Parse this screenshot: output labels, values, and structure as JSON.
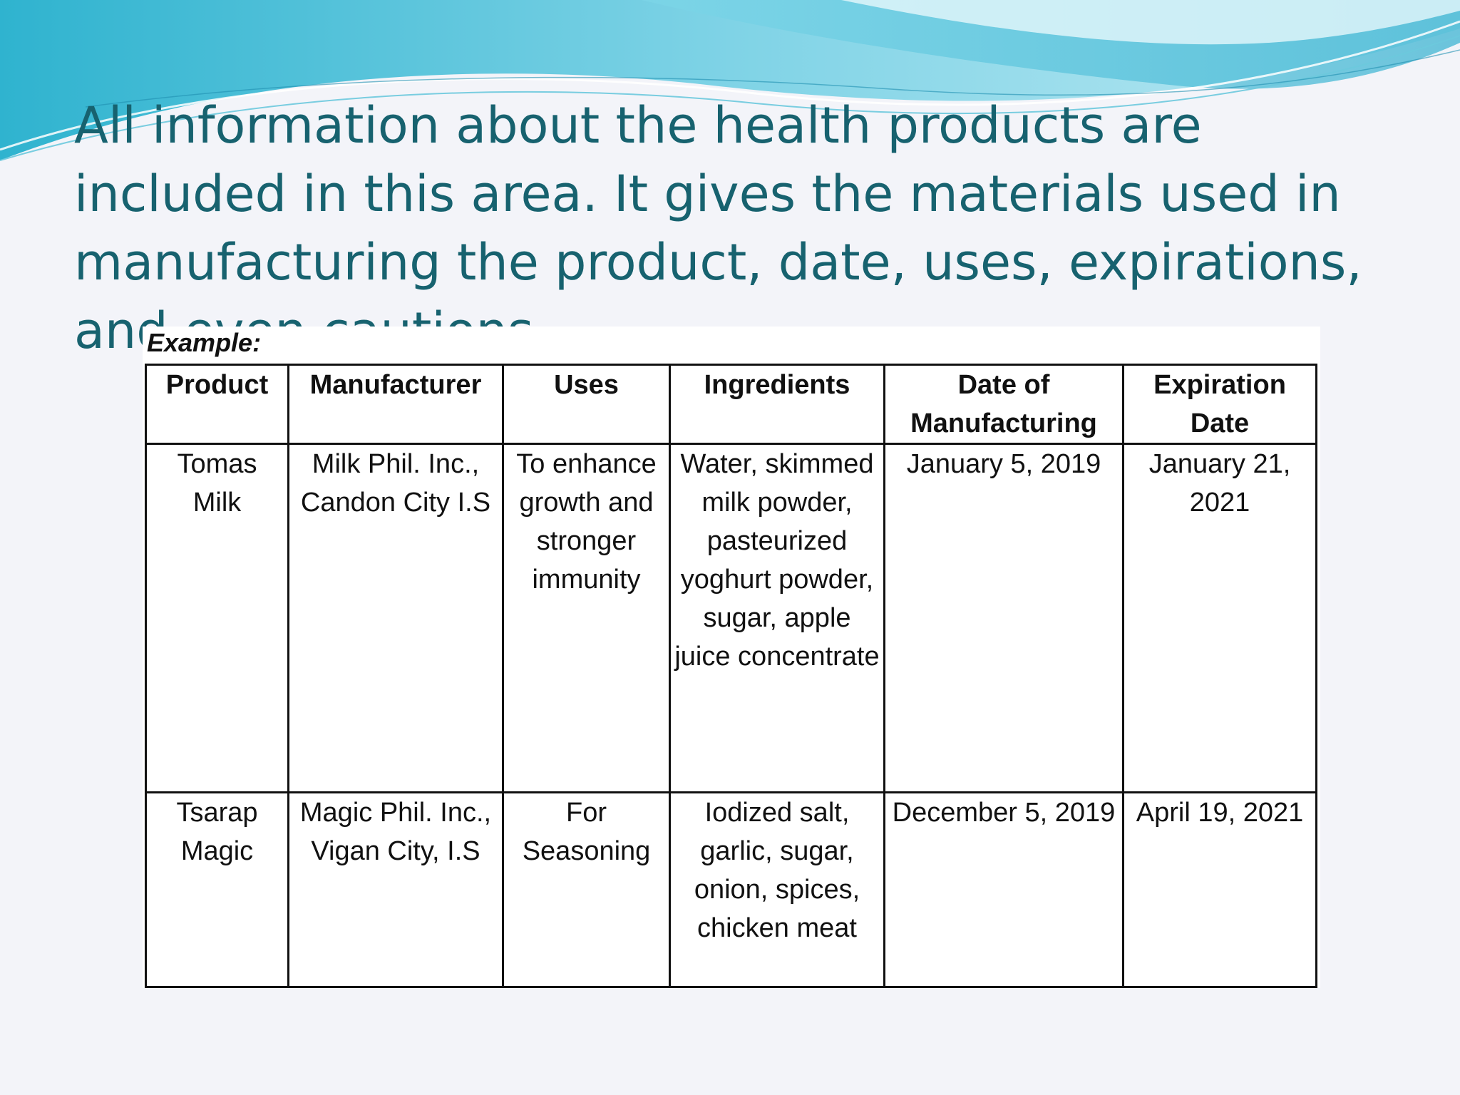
{
  "slide": {
    "title": "All information about the health products are included in this area. It gives the materials used in manufacturing the product, date, uses, expirations, and even cautions."
  },
  "colors": {
    "title_text": "#17626f",
    "wave_light": "#a8e6f2",
    "wave_mid": "#5fc7dd",
    "wave_dark": "#2aa3c3",
    "background": "#f3f4f9"
  },
  "table": {
    "label": "Example:",
    "headers": [
      "Product",
      "Manufacturer",
      "Uses",
      "Ingredients",
      "Date of Manufacturing",
      "Expiration Date"
    ],
    "rows": [
      [
        "Tomas Milk",
        "Milk Phil. Inc., Candon City I.S",
        "To enhance growth and stronger immunity",
        "Water, skimmed milk powder, pasteurized yoghurt powder, sugar, apple juice concentrate",
        "January 5, 2019",
        "January 21, 2021"
      ],
      [
        "Tsarap Magic",
        "Magic Phil. Inc., Vigan City, I.S",
        "For Seasoning",
        "Iodized salt, garlic, sugar, onion, spices, chicken meat",
        "December 5, 2019",
        "April 19, 2021"
      ]
    ]
  }
}
